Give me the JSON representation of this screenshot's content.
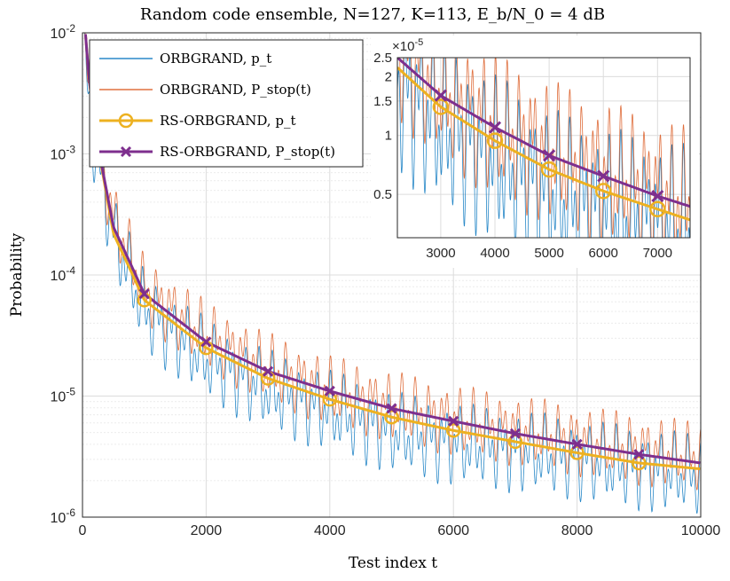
{
  "chart_data": {
    "type": "line",
    "title": "Random code ensemble, N=127, K=113, E_b/N_0 = 4 dB",
    "xlabel": "Test index t",
    "ylabel": "Probability",
    "xlim": [
      0,
      10000
    ],
    "ylim": [
      1e-06,
      0.01
    ],
    "yscale": "log",
    "x_ticks": [
      "0",
      "2000",
      "4000",
      "6000",
      "8000",
      "10000"
    ],
    "y_ticks": [
      "10^-6",
      "10^-5",
      "10^-4",
      "10^-3",
      "10^-2"
    ],
    "grid": true,
    "legend_placement": "top-left",
    "series": [
      {
        "name": "ORBGRAND, p_t",
        "color": "#0072BD",
        "style": "thin-line",
        "x": [
          50,
          200,
          500,
          1000,
          2000,
          3000,
          4000,
          5000,
          6000,
          7000,
          8000,
          9000,
          10000
        ],
        "y": [
          0.005,
          0.0011,
          0.00022,
          5e-05,
          2e-05,
          1.1e-05,
          7.5e-06,
          5e-06,
          4e-06,
          3.5e-06,
          3e-06,
          2.5e-06,
          2.2e-06
        ]
      },
      {
        "name": "ORBGRAND, P_stop(t)",
        "color": "#D95319",
        "style": "thin-line",
        "x": [
          50,
          200,
          500,
          1000,
          2000,
          3000,
          4000,
          5000,
          6000,
          7000,
          8000,
          9000,
          10000
        ],
        "y": [
          0.006,
          0.0014,
          0.0003,
          7.5e-05,
          3.1e-05,
          1.7e-05,
          1.1e-05,
          8.2e-06,
          6.3e-06,
          5.2e-06,
          4.3e-06,
          3.6e-06,
          3.1e-06
        ]
      },
      {
        "name": "RS-ORBGRAND, p_t",
        "color": "#EDB120",
        "marker": "circle",
        "x": [
          50,
          100,
          200,
          500,
          1000,
          2000,
          3000,
          4000,
          5000,
          6000,
          7000,
          8000,
          9000,
          10000
        ],
        "y": [
          0.0095,
          0.0045,
          0.0016,
          0.00022,
          6.2e-05,
          2.5e-05,
          1.4e-05,
          9.4e-06,
          6.7e-06,
          5.2e-06,
          4.2e-06,
          3.4e-06,
          2.8e-06,
          2.5e-06
        ],
        "marker_x": [
          1000,
          2000,
          3000,
          4000,
          5000,
          6000,
          7000,
          8000,
          9000
        ]
      },
      {
        "name": "RS-ORBGRAND, P_stop(t)",
        "color": "#7E2F8E",
        "marker": "x",
        "x": [
          50,
          100,
          200,
          500,
          1000,
          2000,
          3000,
          4000,
          5000,
          6000,
          7000,
          8000,
          9000,
          10000
        ],
        "y": [
          0.0095,
          0.0045,
          0.0016,
          0.00025,
          7e-05,
          2.8e-05,
          1.6e-05,
          1.1e-05,
          7.9e-06,
          6.2e-06,
          4.9e-06,
          4e-06,
          3.3e-06,
          2.8e-06
        ],
        "marker_x": [
          1000,
          2000,
          3000,
          4000,
          5000,
          6000,
          7000,
          8000,
          9000
        ]
      }
    ],
    "inset": {
      "xlim": [
        2200,
        7600
      ],
      "ylim": [
        3e-06,
        2.5e-05
      ],
      "yscale": "log",
      "exponent_label": "×10^-5",
      "x_ticks": [
        3000,
        4000,
        5000,
        6000,
        7000
      ],
      "y_ticks": [
        0.5,
        1,
        1.5,
        2,
        2.5
      ],
      "y_tick_labels": [
        "0.5",
        "1",
        "1.5",
        "2",
        "2.5"
      ]
    }
  }
}
